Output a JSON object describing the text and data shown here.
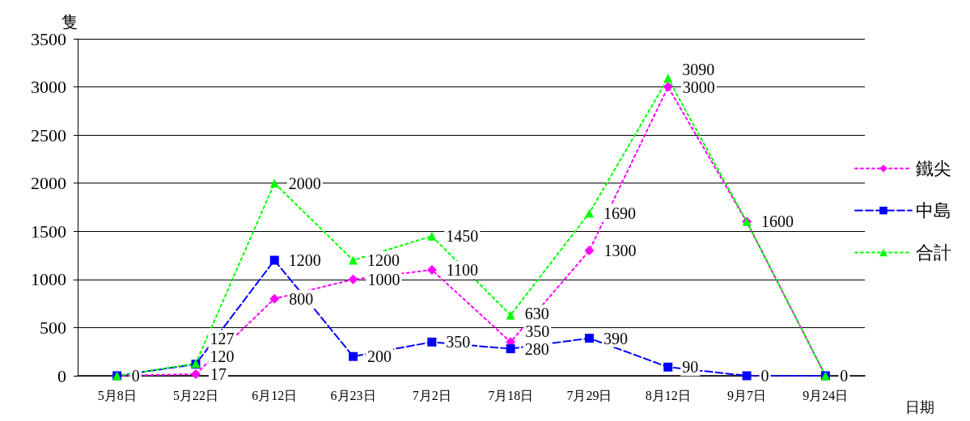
{
  "chart_data": {
    "type": "line",
    "ylabel": "隻",
    "xlabel": "日期",
    "categories": [
      "5月8日",
      "5月22日",
      "6月12日",
      "6月23日",
      "7月2日",
      "7月18日",
      "7月29日",
      "8月12日",
      "9月7日",
      "9月24日"
    ],
    "series": [
      {
        "name": "鐵尖",
        "color": "#ff00ff",
        "marker": "diamond",
        "line_style": "dotted",
        "values": [
          0,
          17,
          800,
          1000,
          1100,
          350,
          1300,
          3000,
          1600,
          0
        ],
        "value_labels": [
          "0",
          "17",
          "800",
          "1000",
          "1100",
          "350",
          "1300",
          "3000",
          "1600",
          "0"
        ]
      },
      {
        "name": "中島",
        "color": "#0000ff",
        "marker": "square",
        "line_style": "dashed",
        "values": [
          0,
          120,
          1200,
          200,
          350,
          280,
          390,
          90,
          0,
          0
        ],
        "value_labels": [
          null,
          "120",
          "1200",
          "200",
          "350",
          "280",
          "390",
          "90",
          "0",
          null
        ]
      },
      {
        "name": "合計",
        "color": "#00ff00",
        "marker": "triangle",
        "line_style": "dotted",
        "values": [
          0,
          127,
          2000,
          1200,
          1450,
          630,
          1690,
          3090,
          1600,
          0
        ],
        "value_labels": [
          null,
          "127",
          "2000",
          "1200",
          "1450",
          "630",
          "1690",
          "3090",
          null,
          null
        ]
      }
    ],
    "ylim": [
      0,
      3500
    ],
    "yticks": [
      0,
      500,
      1000,
      1500,
      2000,
      2500,
      3000,
      3500
    ],
    "grid": "y",
    "legend": "right"
  }
}
